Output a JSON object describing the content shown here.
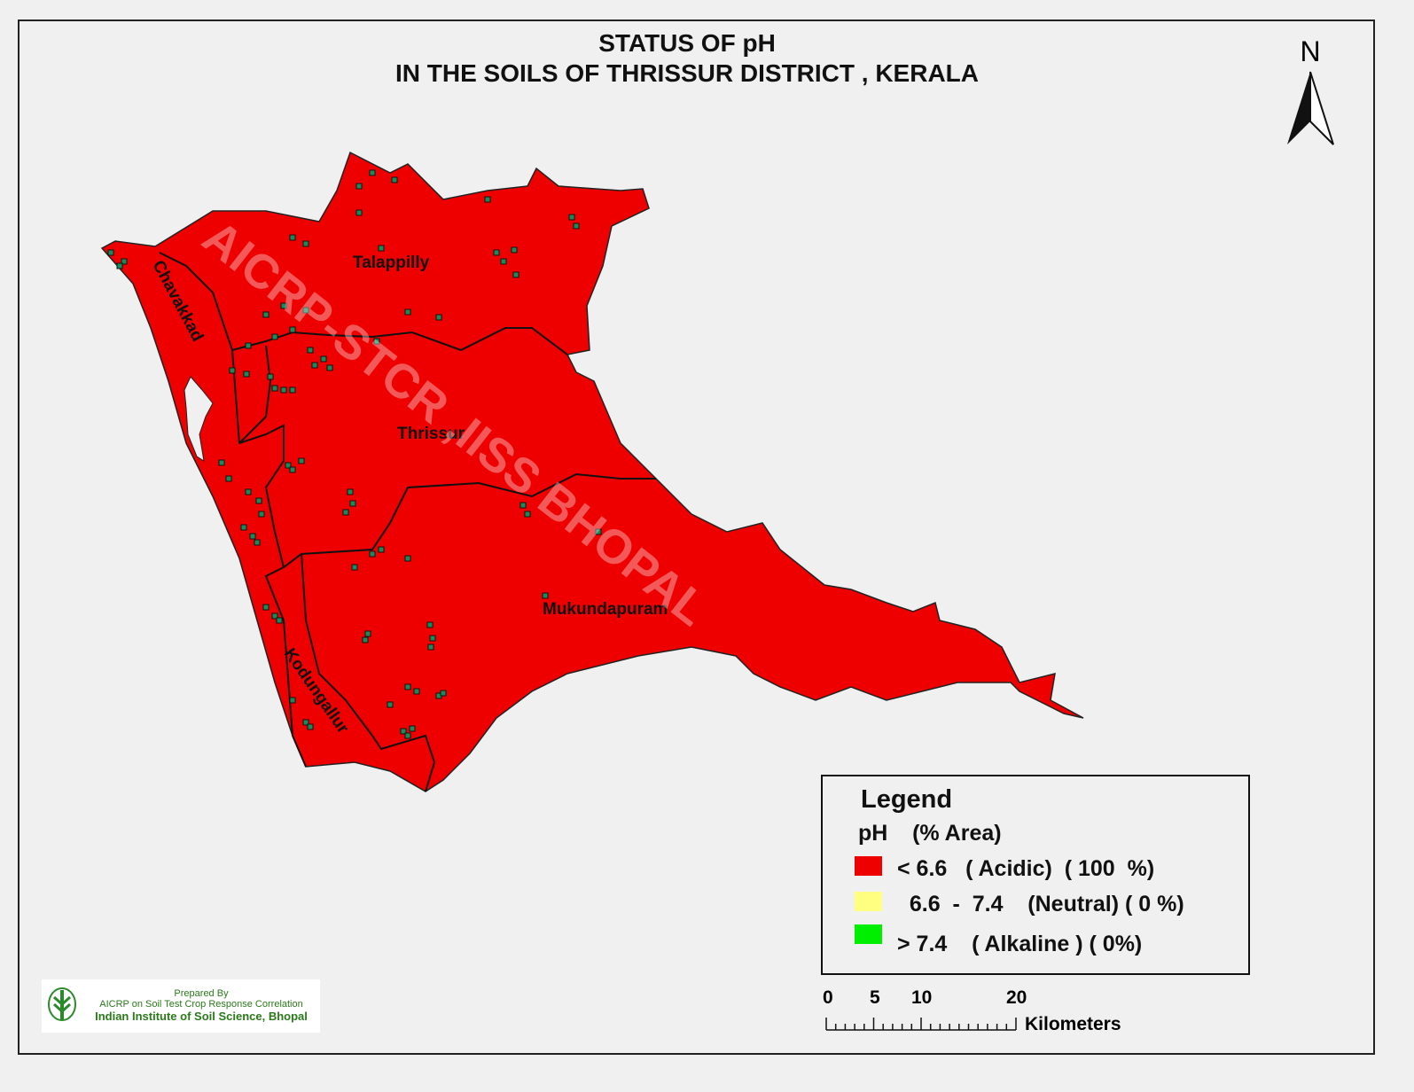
{
  "title": {
    "line1": "STATUS OF pH",
    "line2": "IN THE SOILS OF THRISSUR DISTRICT , KERALA"
  },
  "north_arrow": {
    "label": "N"
  },
  "watermark": "AICRP-STCR ,IISS  BHOPAL",
  "regions": [
    {
      "name": "Talappilly"
    },
    {
      "name": "Chavakkad"
    },
    {
      "name": "Thrissur"
    },
    {
      "name": "Mukundapuram"
    },
    {
      "name": "Kodungallur"
    }
  ],
  "colors": {
    "acidic": "#ee0000",
    "neutral": "#ffff80",
    "alkaline": "#00ee00",
    "sample_point": "#1a8a5a"
  },
  "legend": {
    "title": "Legend",
    "header": "pH    (% Area)",
    "items": [
      {
        "label": "< 6.6   ( Acidic)  ( 100  %)",
        "class": "acidic",
        "area_percent": 100
      },
      {
        "label": "  6.6  -  7.4    (Neutral) ( 0 %)",
        "class": "neutral",
        "area_percent": 0
      },
      {
        "label": "> 7.4    ( Alkaline ) ( 0%)",
        "class": "alkaline",
        "area_percent": 0
      }
    ]
  },
  "scale_bar": {
    "ticks": [
      "0",
      "5",
      "10",
      "20"
    ],
    "unit": "Kilometers"
  },
  "credits": {
    "line1": "Prepared By",
    "line2": "AICRP on Soil Test Crop Response Correlation",
    "line3": "Indian Institute of Soil Science, Bhopal"
  }
}
